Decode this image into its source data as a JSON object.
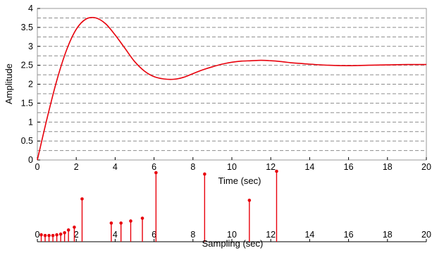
{
  "chart_data": [
    {
      "type": "line",
      "xlabel": "Time (sec)",
      "ylabel": "Amplitude",
      "xlim": [
        0,
        20
      ],
      "ylim": [
        0,
        4
      ],
      "x_ticks": [
        "0",
        "2",
        "4",
        "6",
        "8",
        "10",
        "12",
        "14",
        "16",
        "18",
        "20"
      ],
      "y_ticks": [
        "0",
        "0.5",
        "1",
        "1.5",
        "2",
        "2.5",
        "3",
        "3.5",
        "4"
      ],
      "grid": "dashed horizontal",
      "series": [
        {
          "color": "#e8000b",
          "x": [
            0,
            0.5,
            1,
            1.5,
            2,
            2.5,
            3,
            3.5,
            4,
            4.5,
            5,
            5.5,
            6,
            6.5,
            7,
            7.5,
            8,
            8.5,
            9,
            9.5,
            10,
            10.5,
            11,
            11.5,
            12,
            12.5,
            13,
            13.5,
            14,
            15,
            16,
            17,
            18,
            19,
            20
          ],
          "y": [
            0,
            1.1,
            2.1,
            2.9,
            3.45,
            3.72,
            3.75,
            3.6,
            3.3,
            2.95,
            2.6,
            2.35,
            2.2,
            2.14,
            2.13,
            2.18,
            2.28,
            2.38,
            2.46,
            2.53,
            2.58,
            2.61,
            2.62,
            2.63,
            2.62,
            2.6,
            2.57,
            2.55,
            2.53,
            2.5,
            2.49,
            2.5,
            2.51,
            2.52,
            2.52
          ]
        }
      ]
    },
    {
      "type": "stem",
      "xlabel": "Sampling (sec)",
      "xlim": [
        0,
        20
      ],
      "x_ticks": [
        "0",
        "2",
        "4",
        "6",
        "8",
        "10",
        "12",
        "14",
        "16",
        "18",
        "20"
      ],
      "color": "#e8000b",
      "x": [
        0.2,
        0.4,
        0.6,
        0.8,
        1.0,
        1.2,
        1.4,
        1.6,
        1.9,
        2.3,
        3.8,
        4.3,
        4.8,
        5.4,
        6.1,
        8.6,
        10.9,
        12.3
      ],
      "y": [
        0.1,
        0.09,
        0.09,
        0.09,
        0.1,
        0.11,
        0.13,
        0.17,
        0.21,
        0.62,
        0.27,
        0.27,
        0.3,
        0.34,
        1.0,
        0.98,
        0.6,
        1.02
      ]
    }
  ]
}
